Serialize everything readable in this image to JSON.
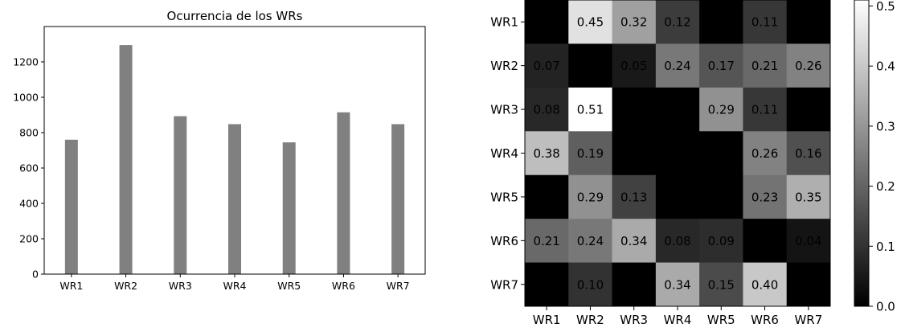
{
  "chart_data": [
    {
      "type": "bar",
      "title": "Ocurrencia de los WRs",
      "xlabel": "",
      "ylabel": "",
      "categories": [
        "WR1",
        "WR2",
        "WR3",
        "WR4",
        "WR5",
        "WR6",
        "WR7"
      ],
      "values": [
        760,
        1295,
        893,
        848,
        745,
        915,
        848
      ],
      "ylim": [
        0,
        1400
      ],
      "yticks": [
        0,
        200,
        400,
        600,
        800,
        1000,
        1200
      ],
      "bar_color": "#808080",
      "grid": false,
      "legend": "none"
    },
    {
      "type": "heatmap",
      "title": "",
      "colormap": "gray",
      "rows": [
        "WR1",
        "WR2",
        "WR3",
        "WR4",
        "WR5",
        "WR6",
        "WR7"
      ],
      "columns": [
        "WR1",
        "WR2",
        "WR3",
        "WR4",
        "WR5",
        "WR6",
        "WR7"
      ],
      "values": [
        [
          0.0,
          0.45,
          0.32,
          0.12,
          0.0,
          0.11,
          0.0
        ],
        [
          0.07,
          0.0,
          0.05,
          0.24,
          0.17,
          0.21,
          0.26
        ],
        [
          0.08,
          0.51,
          0.0,
          0.0,
          0.29,
          0.11,
          0.0
        ],
        [
          0.38,
          0.19,
          0.0,
          0.0,
          0.0,
          0.26,
          0.16
        ],
        [
          0.0,
          0.29,
          0.13,
          0.0,
          0.0,
          0.23,
          0.35
        ],
        [
          0.21,
          0.24,
          0.34,
          0.08,
          0.09,
          0.0,
          0.04
        ],
        [
          0.0,
          0.1,
          0.0,
          0.34,
          0.15,
          0.4,
          0.0
        ]
      ],
      "labels": [
        [
          "",
          "0.45",
          "0.32",
          "0.12",
          "",
          "0.11",
          ""
        ],
        [
          "0.07",
          "",
          "0.05",
          "0.24",
          "0.17",
          "0.21",
          "0.26"
        ],
        [
          "0.08",
          "0.51",
          "",
          "",
          "0.29",
          "0.11",
          ""
        ],
        [
          "0.38",
          "0.19",
          "",
          "",
          "",
          "0.26",
          "0.16"
        ],
        [
          "",
          "0.29",
          "0.13",
          "",
          "",
          "0.23",
          "0.35"
        ],
        [
          "0.21",
          "0.24",
          "0.34",
          "0.08",
          "0.09",
          "",
          "0.04"
        ],
        [
          "",
          "0.10",
          "",
          "0.34",
          "0.15",
          "0.40",
          ""
        ]
      ],
      "colorbar": {
        "range": [
          0.0,
          0.51
        ],
        "ticks": [
          0.0,
          0.1,
          0.2,
          0.3,
          0.4,
          0.5
        ],
        "tick_labels": [
          "0.0",
          "0.1",
          "0.2",
          "0.3",
          "0.4",
          "0.5"
        ],
        "placement": "right"
      }
    }
  ]
}
